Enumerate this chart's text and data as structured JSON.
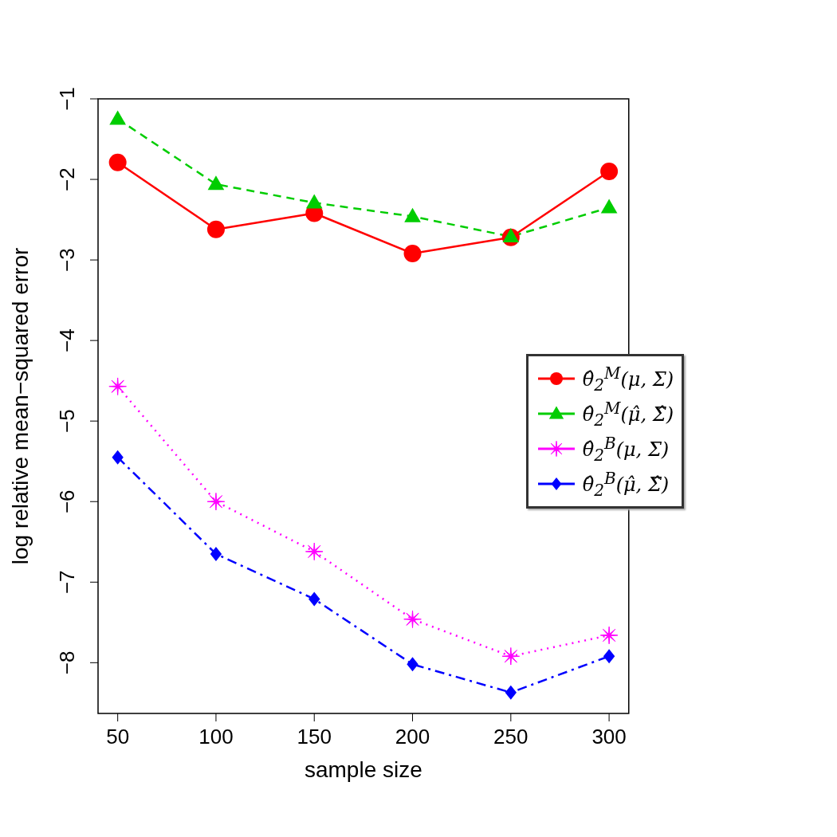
{
  "chart_data": {
    "type": "line",
    "xlabel": "sample size",
    "ylabel": "log relative mean−squared error",
    "x": [
      50,
      100,
      150,
      200,
      250,
      300
    ],
    "xlim": [
      40,
      310
    ],
    "xticks": [
      50,
      100,
      150,
      200,
      250,
      300
    ],
    "ylim": [
      -8.63,
      -1
    ],
    "yticks": [
      -8,
      -7,
      -6,
      -5,
      -4,
      -3,
      -2,
      -1
    ],
    "grid": false,
    "legend": "right",
    "series": [
      {
        "name": "θ̂$_{2}$$^{M}$(μ, Σ)",
        "color": "#ff0000",
        "marker": "circle",
        "line_style": "solid",
        "values": [
          -1.79,
          -2.62,
          -2.42,
          -2.92,
          -2.72,
          -1.9
        ]
      },
      {
        "name": "θ̂$_{2}$$^{M}$(μ̂, Σ̂)",
        "color": "#00cd00",
        "marker": "triangle",
        "line_style": "dashed",
        "values": [
          -1.25,
          -2.06,
          -2.29,
          -2.46,
          -2.71,
          -2.35
        ]
      },
      {
        "name": "θ̂$_{2}$$^{B}$(μ, Σ)",
        "color": "#ff00ff",
        "marker": "star",
        "line_style": "dotted",
        "values": [
          -4.57,
          -6.0,
          -6.62,
          -7.46,
          -7.92,
          -7.66
        ]
      },
      {
        "name": "θ̂$_{2}$$^{B}$(μ̂, Σ̂)",
        "color": "#0000ff",
        "marker": "diamond",
        "line_style": "dashdot",
        "values": [
          -5.45,
          -6.65,
          -7.21,
          -8.02,
          -8.37,
          -7.92
        ]
      }
    ]
  }
}
